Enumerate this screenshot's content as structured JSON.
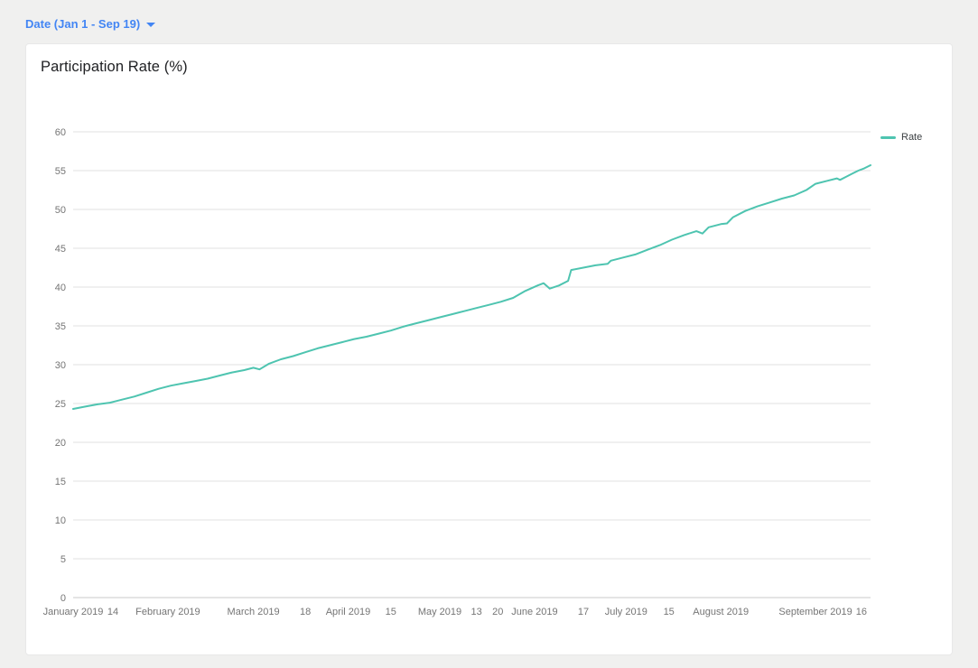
{
  "filter": {
    "label": "Date (Jan 1 - Sep 19)"
  },
  "card": {
    "title": "Participation Rate (%)"
  },
  "chart_data": {
    "type": "line",
    "title": "Participation Rate (%)",
    "legend_position": "top-right",
    "grid": true,
    "x_axis": {
      "start_date": "2019-01-01",
      "end_date": "2019-09-19",
      "ticks": [
        {
          "date": "2019-01-01",
          "label": "January 2019"
        },
        {
          "date": "2019-01-14",
          "label": "14"
        },
        {
          "date": "2019-02-01",
          "label": "February 2019"
        },
        {
          "date": "2019-03-01",
          "label": "March 2019"
        },
        {
          "date": "2019-03-18",
          "label": "18"
        },
        {
          "date": "2019-04-01",
          "label": "April 2019"
        },
        {
          "date": "2019-04-15",
          "label": "15"
        },
        {
          "date": "2019-05-01",
          "label": "May 2019"
        },
        {
          "date": "2019-05-13",
          "label": "13"
        },
        {
          "date": "2019-05-20",
          "label": "20"
        },
        {
          "date": "2019-06-01",
          "label": "June 2019"
        },
        {
          "date": "2019-06-17",
          "label": "17"
        },
        {
          "date": "2019-07-01",
          "label": "July 2019"
        },
        {
          "date": "2019-07-15",
          "label": "15"
        },
        {
          "date": "2019-08-01",
          "label": "August 2019"
        },
        {
          "date": "2019-09-01",
          "label": "September 2019"
        },
        {
          "date": "2019-09-16",
          "label": "16"
        }
      ]
    },
    "y_axis": {
      "min": 0,
      "max": 60,
      "tick_step": 5,
      "tick_labels": [
        "0",
        "5",
        "10",
        "15",
        "20",
        "25",
        "30",
        "35",
        "40",
        "45",
        "50",
        "55",
        "60"
      ]
    },
    "series": [
      {
        "name": "Rate",
        "color": "#4ec4b0",
        "points": [
          [
            "2019-01-01",
            24.3
          ],
          [
            "2019-01-05",
            24.6
          ],
          [
            "2019-01-09",
            24.9
          ],
          [
            "2019-01-13",
            25.1
          ],
          [
            "2019-01-17",
            25.5
          ],
          [
            "2019-01-21",
            25.9
          ],
          [
            "2019-01-25",
            26.4
          ],
          [
            "2019-01-29",
            26.9
          ],
          [
            "2019-02-02",
            27.3
          ],
          [
            "2019-02-06",
            27.6
          ],
          [
            "2019-02-10",
            27.9
          ],
          [
            "2019-02-14",
            28.2
          ],
          [
            "2019-02-18",
            28.6
          ],
          [
            "2019-02-22",
            29.0
          ],
          [
            "2019-02-26",
            29.3
          ],
          [
            "2019-03-01",
            29.6
          ],
          [
            "2019-03-03",
            29.4
          ],
          [
            "2019-03-06",
            30.1
          ],
          [
            "2019-03-10",
            30.7
          ],
          [
            "2019-03-14",
            31.1
          ],
          [
            "2019-03-18",
            31.6
          ],
          [
            "2019-03-22",
            32.1
          ],
          [
            "2019-03-26",
            32.5
          ],
          [
            "2019-03-30",
            32.9
          ],
          [
            "2019-04-03",
            33.3
          ],
          [
            "2019-04-07",
            33.6
          ],
          [
            "2019-04-11",
            34.0
          ],
          [
            "2019-04-15",
            34.4
          ],
          [
            "2019-04-19",
            34.9
          ],
          [
            "2019-04-23",
            35.3
          ],
          [
            "2019-04-27",
            35.7
          ],
          [
            "2019-05-01",
            36.1
          ],
          [
            "2019-05-05",
            36.5
          ],
          [
            "2019-05-09",
            36.9
          ],
          [
            "2019-05-13",
            37.3
          ],
          [
            "2019-05-17",
            37.7
          ],
          [
            "2019-05-21",
            38.1
          ],
          [
            "2019-05-25",
            38.6
          ],
          [
            "2019-05-29",
            39.5
          ],
          [
            "2019-06-02",
            40.2
          ],
          [
            "2019-06-04",
            40.5
          ],
          [
            "2019-06-06",
            39.8
          ],
          [
            "2019-06-09",
            40.2
          ],
          [
            "2019-06-12",
            40.8
          ],
          [
            "2019-06-13",
            42.2
          ],
          [
            "2019-06-17",
            42.5
          ],
          [
            "2019-06-21",
            42.8
          ],
          [
            "2019-06-25",
            43.0
          ],
          [
            "2019-06-26",
            43.4
          ],
          [
            "2019-06-30",
            43.8
          ],
          [
            "2019-07-04",
            44.2
          ],
          [
            "2019-07-08",
            44.8
          ],
          [
            "2019-07-12",
            45.4
          ],
          [
            "2019-07-16",
            46.1
          ],
          [
            "2019-07-20",
            46.7
          ],
          [
            "2019-07-24",
            47.2
          ],
          [
            "2019-07-26",
            46.9
          ],
          [
            "2019-07-28",
            47.7
          ],
          [
            "2019-08-01",
            48.1
          ],
          [
            "2019-08-03",
            48.2
          ],
          [
            "2019-08-05",
            49.0
          ],
          [
            "2019-08-09",
            49.8
          ],
          [
            "2019-08-13",
            50.4
          ],
          [
            "2019-08-17",
            50.9
          ],
          [
            "2019-08-21",
            51.4
          ],
          [
            "2019-08-25",
            51.8
          ],
          [
            "2019-08-29",
            52.5
          ],
          [
            "2019-09-01",
            53.3
          ],
          [
            "2019-09-05",
            53.7
          ],
          [
            "2019-09-08",
            54.0
          ],
          [
            "2019-09-09",
            53.8
          ],
          [
            "2019-09-11",
            54.2
          ],
          [
            "2019-09-13",
            54.6
          ],
          [
            "2019-09-15",
            55.0
          ],
          [
            "2019-09-17",
            55.3
          ],
          [
            "2019-09-19",
            55.7
          ]
        ]
      }
    ]
  },
  "theme": {
    "page_bg": "#f0f0ef",
    "card_bg": "#ffffff",
    "card_border": "#e8e8e8",
    "grid_color": "#e0e0e0",
    "baseline_color": "#c9c9c9",
    "axis_label_color": "#757575",
    "title_color": "#202124",
    "filter_color": "#4285f4",
    "line_color": "#4ec4b0"
  }
}
